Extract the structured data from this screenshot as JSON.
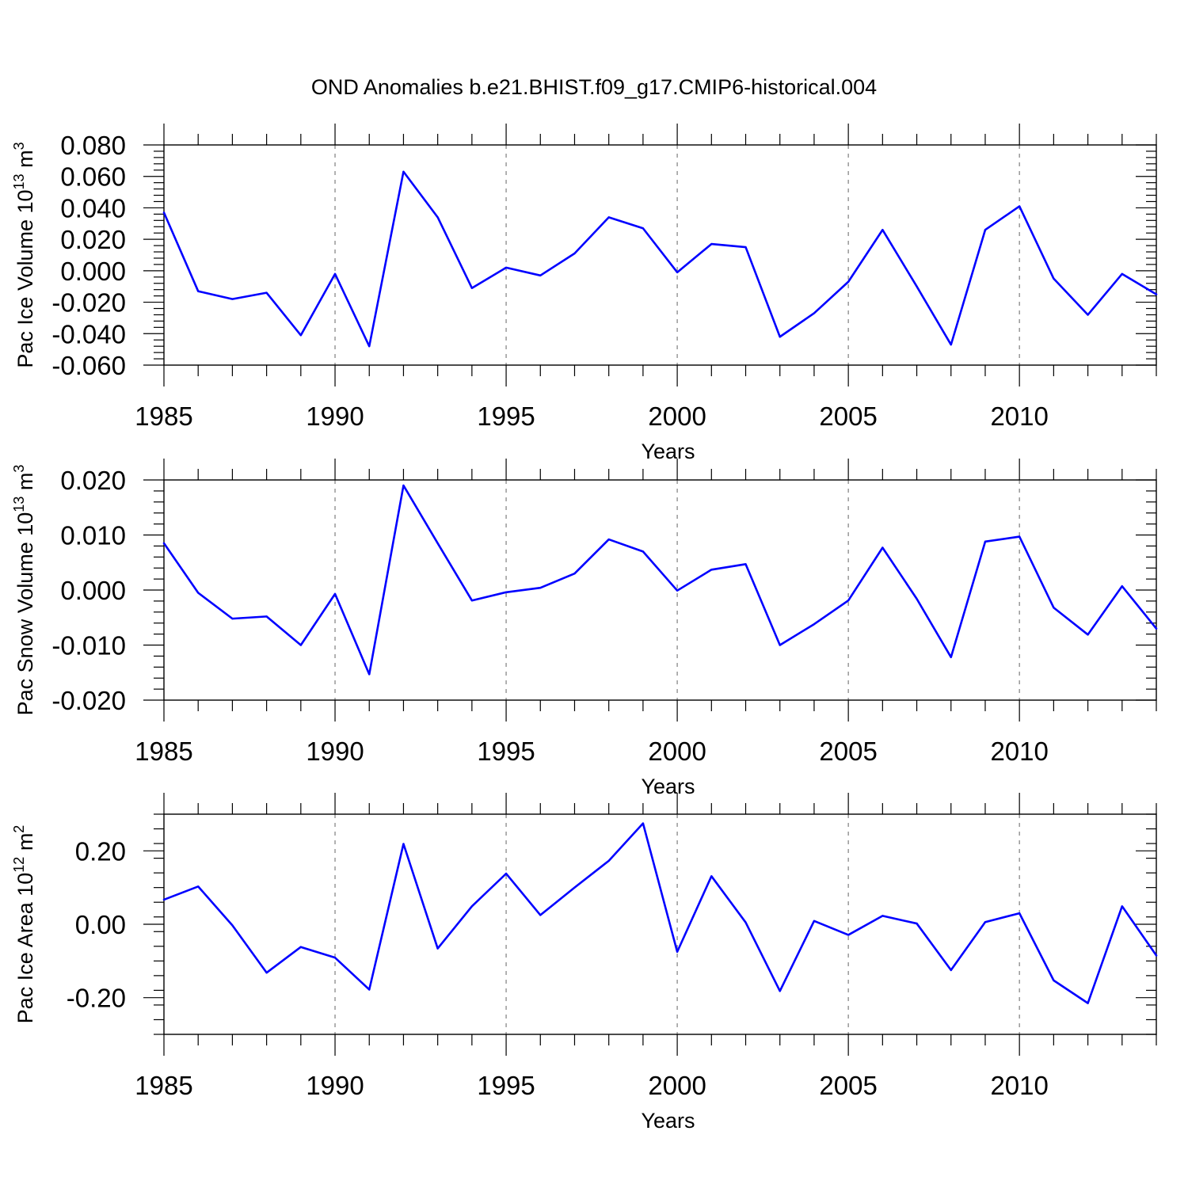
{
  "title": "OND Anomalies b.e21.BHIST.f09_g17.CMIP6-historical.004",
  "colors": {
    "line": "#0000ff",
    "grid": "#888888",
    "axis": "#000000"
  },
  "chart_data": [
    {
      "type": "line",
      "ylabel": {
        "text": "Pac Ice Volume 10",
        "sup1": "13",
        "mid": " m",
        "sup2": "3"
      },
      "xlabel": "Years",
      "xlim": [
        1985,
        2014
      ],
      "ylim": [
        -0.06,
        0.08
      ],
      "grid": "vertical-dashed",
      "x_ticks": [
        1985,
        1990,
        1995,
        2000,
        2005,
        2010
      ],
      "y_ticks": [
        -0.06,
        -0.04,
        -0.02,
        0.0,
        0.02,
        0.04,
        0.06,
        0.08
      ],
      "y_tick_labels": [
        "-0.060",
        "-0.040",
        "-0.020",
        "0.000",
        "0.020",
        "0.040",
        "0.060",
        "0.080"
      ],
      "x": [
        1985,
        1986,
        1987,
        1988,
        1989,
        1990,
        1991,
        1992,
        1993,
        1994,
        1995,
        1996,
        1997,
        1998,
        1999,
        2000,
        2001,
        2002,
        2003,
        2004,
        2005,
        2006,
        2007,
        2008,
        2009,
        2010,
        2011,
        2012,
        2013,
        2014
      ],
      "series": [
        {
          "values": [
            0.037,
            -0.013,
            -0.018,
            -0.014,
            -0.041,
            -0.002,
            -0.048,
            0.063,
            0.034,
            -0.011,
            0.002,
            -0.003,
            0.011,
            0.034,
            0.027,
            -0.001,
            0.017,
            0.015,
            -0.042,
            -0.027,
            -0.007,
            0.026,
            -0.01,
            -0.047,
            0.026,
            0.041,
            -0.005,
            -0.028,
            -0.002,
            -0.015
          ]
        }
      ]
    },
    {
      "type": "line",
      "ylabel": {
        "text": "Pac Snow Volume 10",
        "sup1": "13",
        "mid": " m",
        "sup2": "3"
      },
      "xlabel": "Years",
      "xlim": [
        1985,
        2014
      ],
      "ylim": [
        -0.02,
        0.02
      ],
      "grid": "vertical-dashed",
      "x_ticks": [
        1985,
        1990,
        1995,
        2000,
        2005,
        2010
      ],
      "y_ticks": [
        -0.02,
        -0.01,
        0.0,
        0.01,
        0.02
      ],
      "y_tick_labels": [
        "-0.020",
        "-0.010",
        "0.000",
        "0.010",
        "0.020"
      ],
      "x": [
        1985,
        1986,
        1987,
        1988,
        1989,
        1990,
        1991,
        1992,
        1993,
        1994,
        1995,
        1996,
        1997,
        1998,
        1999,
        2000,
        2001,
        2002,
        2003,
        2004,
        2005,
        2006,
        2007,
        2008,
        2009,
        2010,
        2011,
        2012,
        2013,
        2014
      ],
      "series": [
        {
          "values": [
            0.0085,
            -0.0005,
            -0.0052,
            -0.0048,
            -0.01,
            -0.0007,
            -0.0153,
            0.019,
            0.0085,
            -0.0019,
            -0.0004,
            0.0004,
            0.003,
            0.0092,
            0.007,
            -0.0001,
            0.0037,
            0.0047,
            -0.01,
            -0.0062,
            -0.0019,
            0.0077,
            -0.0016,
            -0.0122,
            0.0088,
            0.0097,
            -0.0032,
            -0.0081,
            0.0007,
            -0.007
          ]
        }
      ]
    },
    {
      "type": "line",
      "ylabel": {
        "text": "Pac Ice Area 10",
        "sup1": "12",
        "mid": " m",
        "sup2": "2"
      },
      "xlabel": "Years",
      "xlim": [
        1985,
        2014
      ],
      "ylim": [
        -0.3,
        0.3
      ],
      "grid": "vertical-dashed",
      "x_ticks": [
        1985,
        1990,
        1995,
        2000,
        2005,
        2010
      ],
      "y_ticks": [
        -0.2,
        0.0,
        0.2
      ],
      "y_tick_labels": [
        "-0.20",
        "0.00",
        "0.20"
      ],
      "x": [
        1985,
        1986,
        1987,
        1988,
        1989,
        1990,
        1991,
        1992,
        1993,
        1994,
        1995,
        1996,
        1997,
        1998,
        1999,
        2000,
        2001,
        2002,
        2003,
        2004,
        2005,
        2006,
        2007,
        2008,
        2009,
        2010,
        2011,
        2012,
        2013,
        2014
      ],
      "series": [
        {
          "values": [
            0.067,
            0.103,
            -0.003,
            -0.132,
            -0.062,
            -0.091,
            -0.178,
            0.219,
            -0.066,
            0.049,
            0.138,
            0.025,
            0.1,
            0.173,
            0.275,
            -0.075,
            0.131,
            0.005,
            -0.182,
            0.009,
            -0.029,
            0.023,
            0.002,
            -0.125,
            0.006,
            0.03,
            -0.153,
            -0.215,
            0.049,
            -0.085
          ]
        }
      ]
    }
  ]
}
